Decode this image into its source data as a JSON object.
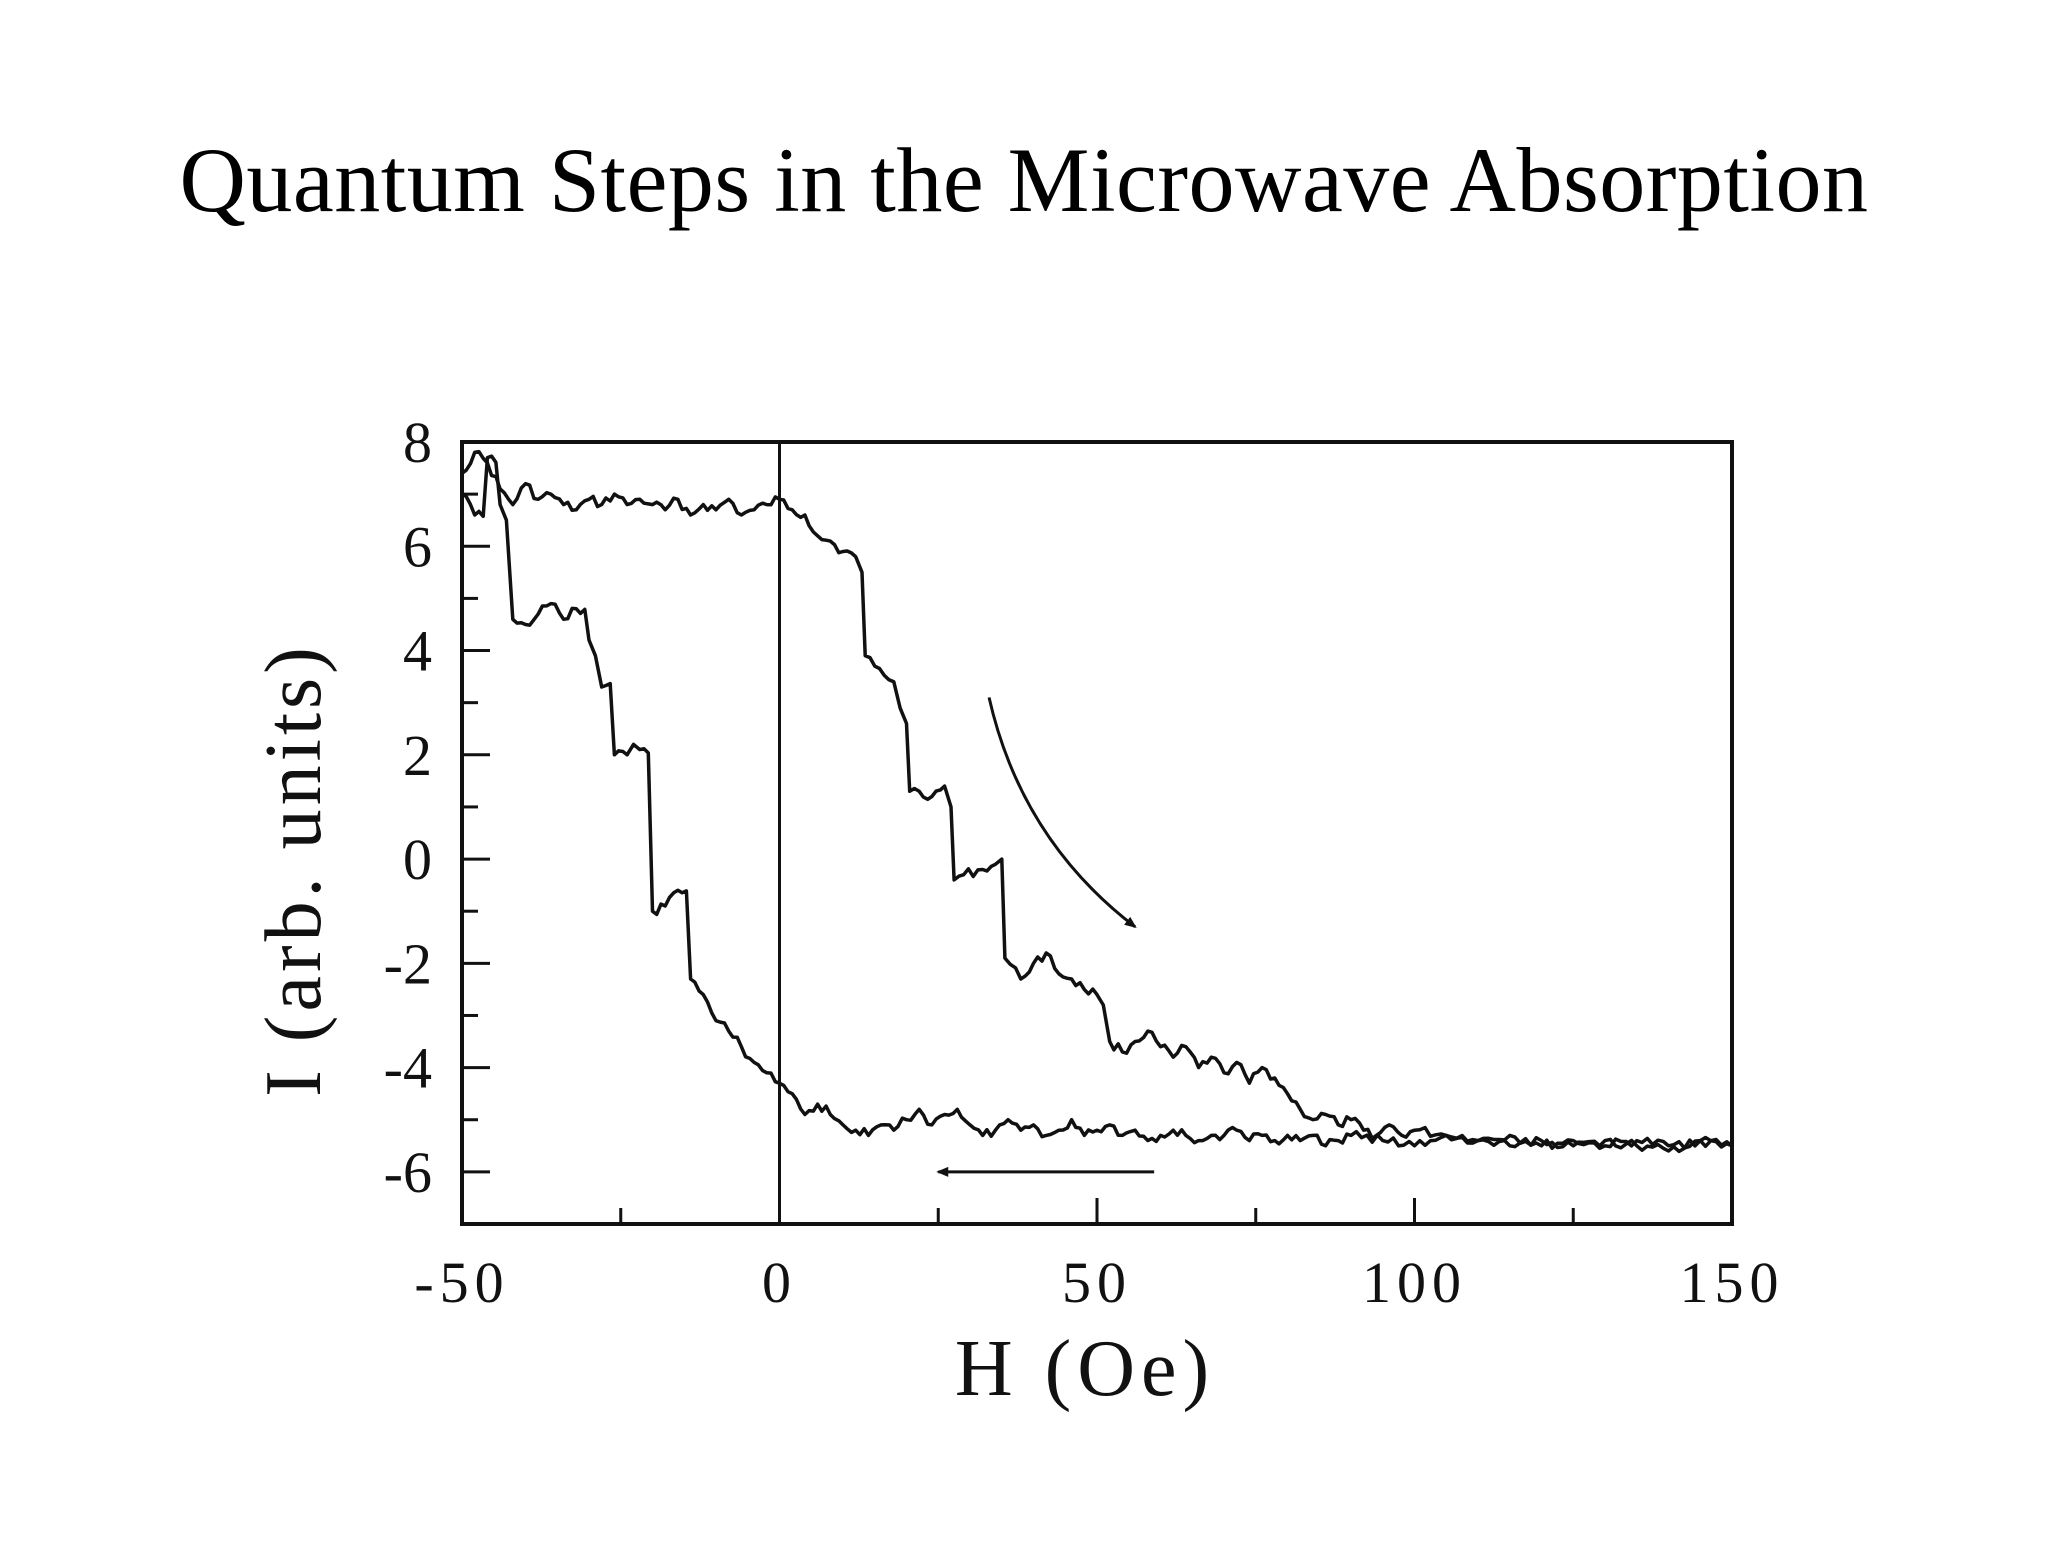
{
  "slide": {
    "title": "Quantum Steps in the Microwave Absorption"
  },
  "colors": {
    "background": "#ffffff",
    "ink": "#111111"
  },
  "chart_data": {
    "type": "line",
    "title": "",
    "xlabel": "H (Oe)",
    "ylabel": "I (arb. units)",
    "xlim": [
      -50,
      150
    ],
    "ylim": [
      -7,
      8
    ],
    "xticks": [
      -50,
      0,
      50,
      100,
      150
    ],
    "yticks": [
      -6,
      -4,
      -2,
      0,
      2,
      4,
      6,
      8
    ],
    "grid": false,
    "legend": "none",
    "reference_lines": [
      {
        "x": 0
      }
    ],
    "annotations": [
      {
        "type": "curved-arrow",
        "direction": "increasing field",
        "from": [
          33,
          3.1
        ],
        "to": [
          56,
          -1.3
        ]
      },
      {
        "type": "arrow",
        "direction": "decreasing field",
        "from": [
          59,
          -6.0
        ],
        "to": [
          25,
          -6.0
        ]
      }
    ],
    "series": [
      {
        "x": [
          -50,
          -48,
          -46,
          -44,
          -42,
          -40,
          -38,
          -36,
          -34,
          -32,
          -30,
          -28,
          -26,
          -24,
          -22,
          -20,
          -18,
          -16,
          -14,
          -12,
          -10,
          -8,
          -6,
          -4,
          -2,
          0,
          2,
          4,
          6,
          8,
          10,
          12,
          13,
          13.5,
          15,
          18,
          19,
          20,
          20.5,
          22,
          24,
          26,
          27,
          27.5,
          29,
          32,
          34,
          35,
          35.5,
          38,
          40,
          42,
          44,
          46,
          48,
          50,
          51,
          52,
          54,
          56,
          58,
          60,
          62,
          64,
          66,
          68,
          70,
          72,
          74,
          76,
          78,
          80,
          82,
          84,
          86,
          88,
          90,
          92,
          94,
          96,
          98,
          100,
          105,
          110,
          115,
          120,
          125,
          130,
          135,
          140,
          145,
          150
        ],
        "y": [
          7.4,
          7.8,
          7.6,
          7.1,
          6.8,
          7.2,
          6.9,
          7.0,
          6.8,
          6.7,
          6.9,
          6.8,
          7.0,
          6.8,
          6.9,
          6.8,
          6.7,
          6.9,
          6.6,
          6.8,
          6.7,
          6.9,
          6.6,
          6.7,
          6.8,
          6.9,
          6.7,
          6.6,
          6.2,
          6.1,
          5.9,
          5.8,
          5.5,
          3.9,
          3.7,
          3.4,
          2.9,
          2.6,
          1.3,
          1.3,
          1.2,
          1.4,
          1.0,
          -0.4,
          -0.3,
          -0.2,
          -0.1,
          0.0,
          -1.9,
          -2.3,
          -2.0,
          -1.8,
          -2.2,
          -2.3,
          -2.5,
          -2.6,
          -2.8,
          -3.5,
          -3.7,
          -3.5,
          -3.3,
          -3.6,
          -3.8,
          -3.6,
          -4.0,
          -3.8,
          -4.1,
          -3.9,
          -4.3,
          -4.0,
          -4.2,
          -4.5,
          -4.8,
          -5.0,
          -4.9,
          -5.1,
          -5.0,
          -5.2,
          -5.3,
          -5.1,
          -5.3,
          -5.2,
          -5.3,
          -5.4,
          -5.3,
          -5.5,
          -5.4,
          -5.5,
          -5.4,
          -5.5,
          -5.4,
          -5.5
        ]
      },
      {
        "x": [
          -50,
          -48,
          -46,
          -44,
          -43,
          -42,
          -40,
          -38,
          -36,
          -34,
          -32,
          -30,
          -29,
          -28,
          -26,
          -24,
          -23,
          -22,
          -20,
          -18,
          -16,
          -14,
          -12,
          -10,
          -8,
          -6,
          -4,
          -2,
          0,
          2,
          4,
          6,
          8,
          10,
          12,
          14,
          16,
          18,
          20,
          22,
          24,
          26,
          28,
          30,
          32,
          34,
          36,
          38,
          40,
          42,
          44,
          46,
          48,
          50,
          52,
          54,
          56,
          58,
          60,
          62,
          64,
          66,
          68,
          70,
          72,
          74,
          76,
          78,
          80,
          82,
          84,
          86,
          88,
          90,
          95,
          100,
          105,
          110,
          115,
          120,
          125,
          130,
          135,
          140,
          145,
          150
        ],
        "y": [
          7.0,
          6.6,
          7.7,
          6.8,
          6.5,
          4.6,
          4.5,
          4.7,
          4.9,
          4.6,
          4.8,
          4.2,
          3.9,
          3.3,
          2.0,
          2.0,
          2.2,
          2.1,
          -1.0,
          -0.9,
          -0.6,
          -2.3,
          -2.6,
          -3.1,
          -3.3,
          -3.6,
          -3.9,
          -4.1,
          -4.3,
          -4.5,
          -4.9,
          -4.7,
          -4.9,
          -5.1,
          -5.2,
          -5.3,
          -5.1,
          -5.2,
          -5.0,
          -4.8,
          -5.1,
          -4.9,
          -4.8,
          -5.1,
          -5.3,
          -5.2,
          -5.0,
          -5.2,
          -5.1,
          -5.3,
          -5.2,
          -5.0,
          -5.3,
          -5.2,
          -5.1,
          -5.3,
          -5.2,
          -5.4,
          -5.3,
          -5.2,
          -5.3,
          -5.4,
          -5.3,
          -5.3,
          -5.2,
          -5.4,
          -5.3,
          -5.4,
          -5.3,
          -5.4,
          -5.3,
          -5.5,
          -5.4,
          -5.3,
          -5.4,
          -5.5,
          -5.3,
          -5.4,
          -5.5,
          -5.4,
          -5.5,
          -5.4,
          -5.5,
          -5.6,
          -5.4,
          -5.5
        ]
      }
    ]
  }
}
